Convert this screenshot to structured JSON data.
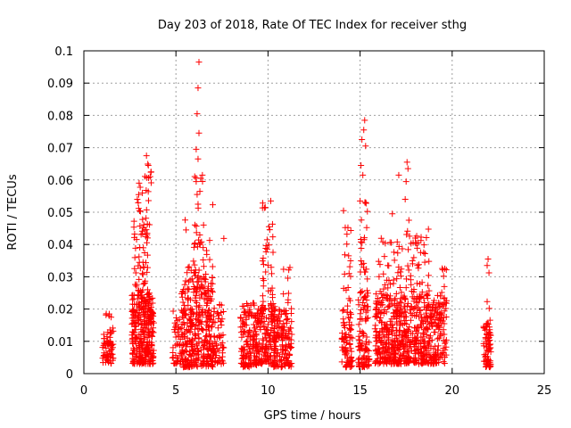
{
  "chart_data": {
    "type": "scatter",
    "title": "Day 203 of 2018, Rate Of TEC Index for receiver sthg",
    "xlabel": "GPS time / hours",
    "ylabel": "ROTI / TECUs",
    "xlim": [
      0,
      25
    ],
    "ylim": [
      0,
      0.1
    ],
    "x_ticks": [
      0,
      5,
      10,
      15,
      20,
      25
    ],
    "x_tick_labels": [
      "0",
      "5",
      "10",
      "15",
      "20",
      "25"
    ],
    "y_ticks": [
      0,
      0.01,
      0.02,
      0.03,
      0.04,
      0.05,
      0.06,
      0.07,
      0.08,
      0.09,
      0.1
    ],
    "y_tick_labels": [
      "0",
      "0.01",
      "0.02",
      "0.03",
      "0.04",
      "0.05",
      "0.06",
      "0.07",
      "0.08",
      "0.09",
      "0.1"
    ],
    "grid": true,
    "marker": "+",
    "color": "#ff0000",
    "clusters": [
      {
        "x_range": [
          1.0,
          1.6
        ],
        "y_range": [
          0.003,
          0.013
        ],
        "count": 60
      },
      {
        "x_range": [
          1.2,
          1.6
        ],
        "y_range": [
          0.012,
          0.022
        ],
        "count": 10
      },
      {
        "x_range": [
          2.6,
          3.8
        ],
        "y_range": [
          0.003,
          0.025
        ],
        "count": 300
      },
      {
        "x_range": [
          2.7,
          3.5
        ],
        "y_range": [
          0.025,
          0.05
        ],
        "count": 50
      },
      {
        "x_range": [
          3.3,
          3.7
        ],
        "y_range": [
          0.04,
          0.067
        ],
        "count": 18
      },
      {
        "x_range": [
          2.9,
          3.2
        ],
        "y_range": [
          0.05,
          0.059
        ],
        "count": 8
      },
      {
        "x_range": [
          4.8,
          5.4
        ],
        "y_range": [
          0.003,
          0.02
        ],
        "count": 50
      },
      {
        "x_range": [
          5.3,
          7.0
        ],
        "y_range": [
          0.002,
          0.03
        ],
        "count": 340
      },
      {
        "x_range": [
          5.6,
          7.0
        ],
        "y_range": [
          0.028,
          0.042
        ],
        "count": 35
      },
      {
        "x_range": [
          6.0,
          6.5
        ],
        "y_range": [
          0.04,
          0.07
        ],
        "count": 12
      },
      {
        "x_range": [
          7.0,
          7.6
        ],
        "y_range": [
          0.003,
          0.022
        ],
        "count": 60
      },
      {
        "x_range": [
          8.5,
          9.4
        ],
        "y_range": [
          0.002,
          0.022
        ],
        "count": 140
      },
      {
        "x_range": [
          9.4,
          10.4
        ],
        "y_range": [
          0.003,
          0.022
        ],
        "count": 150
      },
      {
        "x_range": [
          9.7,
          10.3
        ],
        "y_range": [
          0.02,
          0.053
        ],
        "count": 35
      },
      {
        "x_range": [
          10.3,
          11.3
        ],
        "y_range": [
          0.002,
          0.02
        ],
        "count": 140
      },
      {
        "x_range": [
          10.8,
          11.3
        ],
        "y_range": [
          0.018,
          0.033
        ],
        "count": 12
      },
      {
        "x_range": [
          14.0,
          14.6
        ],
        "y_range": [
          0.002,
          0.02
        ],
        "count": 80
      },
      {
        "x_range": [
          14.1,
          14.5
        ],
        "y_range": [
          0.02,
          0.046
        ],
        "count": 18
      },
      {
        "x_range": [
          14.9,
          15.5
        ],
        "y_range": [
          0.002,
          0.025
        ],
        "count": 90
      },
      {
        "x_range": [
          15.0,
          15.4
        ],
        "y_range": [
          0.025,
          0.055
        ],
        "count": 25
      },
      {
        "x_range": [
          15.8,
          17.5
        ],
        "y_range": [
          0.003,
          0.025
        ],
        "count": 320
      },
      {
        "x_range": [
          16.0,
          17.3
        ],
        "y_range": [
          0.025,
          0.045
        ],
        "count": 35
      },
      {
        "x_range": [
          17.5,
          19.7
        ],
        "y_range": [
          0.003,
          0.025
        ],
        "count": 340
      },
      {
        "x_range": [
          17.5,
          18.8
        ],
        "y_range": [
          0.025,
          0.045
        ],
        "count": 45
      },
      {
        "x_range": [
          19.4,
          19.7
        ],
        "y_range": [
          0.025,
          0.033
        ],
        "count": 6
      },
      {
        "x_range": [
          21.7,
          22.1
        ],
        "y_range": [
          0.002,
          0.015
        ],
        "count": 70
      },
      {
        "x_range": [
          21.8,
          22.1
        ],
        "y_range": [
          0.015,
          0.022
        ],
        "count": 6
      }
    ],
    "outliers": [
      {
        "x": 6.25,
        "y": 0.0965
      },
      {
        "x": 6.2,
        "y": 0.0885
      },
      {
        "x": 6.15,
        "y": 0.0805
      },
      {
        "x": 6.25,
        "y": 0.0745
      },
      {
        "x": 6.1,
        "y": 0.0695
      },
      {
        "x": 6.2,
        "y": 0.0665
      },
      {
        "x": 6.35,
        "y": 0.0605
      },
      {
        "x": 6.1,
        "y": 0.0595
      },
      {
        "x": 6.15,
        "y": 0.0555
      },
      {
        "x": 6.2,
        "y": 0.0525
      },
      {
        "x": 7.0,
        "y": 0.0523
      },
      {
        "x": 7.6,
        "y": 0.0419
      },
      {
        "x": 5.5,
        "y": 0.0476
      },
      {
        "x": 5.55,
        "y": 0.0445
      },
      {
        "x": 15.25,
        "y": 0.0785
      },
      {
        "x": 15.2,
        "y": 0.0755
      },
      {
        "x": 15.1,
        "y": 0.0725
      },
      {
        "x": 15.3,
        "y": 0.0705
      },
      {
        "x": 15.05,
        "y": 0.0645
      },
      {
        "x": 15.15,
        "y": 0.0615
      },
      {
        "x": 15.0,
        "y": 0.0535
      },
      {
        "x": 14.1,
        "y": 0.0505
      },
      {
        "x": 17.1,
        "y": 0.0615
      },
      {
        "x": 17.5,
        "y": 0.0595
      },
      {
        "x": 17.55,
        "y": 0.0655
      },
      {
        "x": 17.6,
        "y": 0.0635
      },
      {
        "x": 17.45,
        "y": 0.054
      },
      {
        "x": 16.75,
        "y": 0.0495
      },
      {
        "x": 17.65,
        "y": 0.0475
      },
      {
        "x": 3.4,
        "y": 0.0675
      },
      {
        "x": 3.5,
        "y": 0.0645
      },
      {
        "x": 3.6,
        "y": 0.061
      },
      {
        "x": 3.0,
        "y": 0.059
      },
      {
        "x": 21.95,
        "y": 0.0355
      },
      {
        "x": 21.9,
        "y": 0.0335
      },
      {
        "x": 22.0,
        "y": 0.0312
      },
      {
        "x": 21.9,
        "y": 0.0223
      },
      {
        "x": 19.6,
        "y": 0.0325
      },
      {
        "x": 10.15,
        "y": 0.0535
      },
      {
        "x": 9.85,
        "y": 0.0515
      }
    ]
  }
}
